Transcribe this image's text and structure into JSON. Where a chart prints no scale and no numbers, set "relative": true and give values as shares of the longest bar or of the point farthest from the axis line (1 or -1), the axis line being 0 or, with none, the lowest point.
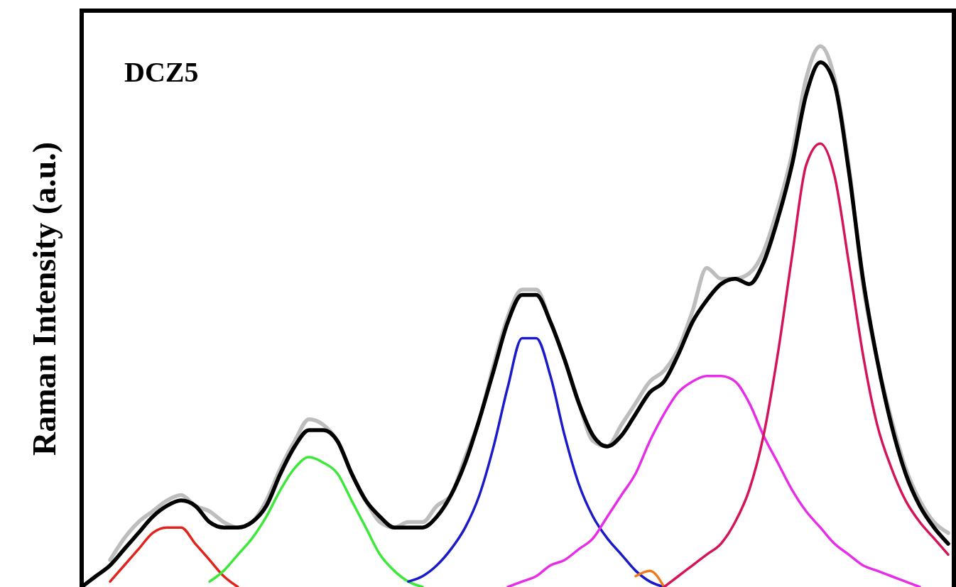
{
  "chart_data": {
    "type": "line",
    "relative": true,
    "title": "DCZ5",
    "ylabel": "Raman Intensity (a.u.)",
    "line_style": "solid",
    "categories": [
      null,
      null,
      null,
      null,
      null,
      null,
      null,
      null,
      null,
      null,
      null,
      null,
      null,
      null,
      null,
      null,
      null,
      null,
      null,
      null,
      null,
      null,
      null,
      null,
      null,
      null,
      null,
      null,
      null,
      null,
      null,
      null,
      null,
      null,
      null,
      null,
      null,
      null,
      null,
      null,
      null,
      null,
      null,
      null,
      null,
      null,
      null,
      null,
      null,
      null,
      null,
      null,
      null,
      null,
      null,
      null,
      null,
      null,
      null,
      null,
      null,
      null
    ],
    "series": [
      {
        "color": "#bdbdbd",
        "values": [
          null,
          null,
          0.05,
          0.09,
          0.12,
          0.14,
          0.16,
          0.17,
          0.15,
          0.14,
          0.12,
          0.11,
          0.12,
          0.16,
          0.22,
          0.27,
          0.31,
          0.3,
          0.27,
          0.21,
          0.16,
          0.12,
          0.11,
          0.12,
          0.12,
          0.15,
          0.17,
          0.24,
          0.31,
          0.41,
          0.5,
          0.55,
          0.55,
          0.49,
          0.42,
          0.34,
          0.27,
          0.26,
          0.3,
          0.34,
          0.38,
          0.4,
          0.44,
          0.51,
          0.59,
          0.57,
          0.57,
          0.58,
          0.62,
          0.7,
          0.8,
          0.94,
          1.0,
          0.94,
          0.78,
          0.56,
          0.42,
          0.31,
          0.22,
          0.16,
          0.12,
          0.1
        ]
      },
      {
        "color": "#000000",
        "values": [
          0,
          0.02,
          0.04,
          0.07,
          0.1,
          0.13,
          0.15,
          0.16,
          0.15,
          0.12,
          0.11,
          0.11,
          0.12,
          0.15,
          0.21,
          0.26,
          0.29,
          0.29,
          0.27,
          0.21,
          0.16,
          0.13,
          0.11,
          0.11,
          0.11,
          0.13,
          0.17,
          0.23,
          0.31,
          0.4,
          0.49,
          0.54,
          0.54,
          0.49,
          0.42,
          0.34,
          0.28,
          0.26,
          0.28,
          0.32,
          0.36,
          0.38,
          0.43,
          0.49,
          0.53,
          0.56,
          0.57,
          0.56,
          0.6,
          0.68,
          0.78,
          0.91,
          0.97,
          0.93,
          0.77,
          0.57,
          0.42,
          0.3,
          0.21,
          0.15,
          0.11,
          0.08
        ]
      },
      {
        "color": "#e0231b",
        "values": [
          null,
          null,
          0.01,
          0.04,
          0.07,
          0.1,
          0.11,
          0.11,
          0.08,
          0.05,
          0.02,
          0,
          null,
          null,
          null,
          null,
          null,
          null,
          null,
          null,
          null,
          null,
          null,
          null,
          null,
          null,
          null,
          null,
          null,
          null,
          null,
          null,
          null,
          null,
          null,
          null,
          null,
          null,
          null,
          null,
          null,
          null,
          null,
          null,
          null,
          null,
          null,
          null,
          null,
          null,
          null,
          null,
          null,
          null,
          null,
          null,
          null,
          null,
          null,
          null,
          null,
          null
        ]
      },
      {
        "color": "#3ee83a",
        "values": [
          null,
          null,
          null,
          null,
          null,
          null,
          null,
          null,
          null,
          0.01,
          0.03,
          0.06,
          0.09,
          0.13,
          0.18,
          0.22,
          0.24,
          0.23,
          0.21,
          0.16,
          0.11,
          0.06,
          0.03,
          0.01,
          0,
          null,
          null,
          null,
          null,
          null,
          null,
          null,
          null,
          null,
          null,
          null,
          null,
          null,
          null,
          null,
          null,
          null,
          null,
          null,
          null,
          null,
          null,
          null,
          null,
          null,
          null,
          null,
          null,
          null,
          null,
          null,
          null,
          null,
          null,
          null,
          null,
          null
        ]
      },
      {
        "color": "#1a1ac8",
        "values": [
          null,
          null,
          null,
          null,
          null,
          null,
          null,
          null,
          null,
          null,
          null,
          null,
          null,
          null,
          null,
          null,
          null,
          null,
          null,
          null,
          null,
          null,
          null,
          0.01,
          0.02,
          0.04,
          0.07,
          0.11,
          0.17,
          0.26,
          0.37,
          0.46,
          0.46,
          0.39,
          0.28,
          0.19,
          0.13,
          0.09,
          0.06,
          0.03,
          0.01,
          0,
          null,
          null,
          null,
          null,
          null,
          null,
          null,
          null,
          null,
          null,
          null,
          null,
          null,
          null,
          null,
          null,
          null,
          null,
          null,
          null
        ]
      },
      {
        "color": "#f07a1a",
        "values": [
          null,
          null,
          null,
          null,
          null,
          null,
          null,
          null,
          null,
          null,
          null,
          null,
          null,
          null,
          null,
          null,
          null,
          null,
          null,
          null,
          null,
          null,
          null,
          null,
          null,
          null,
          null,
          null,
          null,
          null,
          null,
          null,
          null,
          null,
          null,
          null,
          null,
          null,
          null,
          0.02,
          0.03,
          0,
          null,
          null,
          null,
          null,
          null,
          null,
          null,
          null,
          null,
          null,
          null,
          null,
          null,
          null,
          null,
          null,
          null,
          null,
          null,
          null
        ]
      },
      {
        "color": "#e62ee6",
        "values": [
          null,
          null,
          null,
          null,
          null,
          null,
          null,
          null,
          null,
          null,
          null,
          null,
          null,
          null,
          null,
          null,
          null,
          null,
          null,
          null,
          null,
          null,
          null,
          null,
          null,
          null,
          null,
          null,
          null,
          null,
          0,
          0.01,
          0.02,
          0.04,
          0.05,
          0.07,
          0.09,
          0.13,
          0.17,
          0.21,
          0.27,
          0.32,
          0.36,
          0.38,
          0.39,
          0.39,
          0.38,
          0.34,
          0.28,
          0.23,
          0.18,
          0.14,
          0.11,
          0.08,
          0.06,
          0.04,
          0.03,
          0.02,
          0.01,
          0,
          null,
          null
        ]
      },
      {
        "color": "#d4145a",
        "values": [
          null,
          null,
          null,
          null,
          null,
          null,
          null,
          null,
          null,
          null,
          null,
          null,
          null,
          null,
          null,
          null,
          null,
          null,
          null,
          null,
          null,
          null,
          null,
          null,
          null,
          null,
          null,
          null,
          null,
          null,
          null,
          null,
          null,
          null,
          null,
          null,
          null,
          null,
          null,
          null,
          null,
          0,
          0.02,
          0.04,
          0.06,
          0.08,
          0.12,
          0.18,
          0.28,
          0.43,
          0.61,
          0.78,
          0.82,
          0.76,
          0.6,
          0.43,
          0.3,
          0.22,
          0.16,
          0.12,
          0.09,
          0.06
        ]
      }
    ]
  }
}
